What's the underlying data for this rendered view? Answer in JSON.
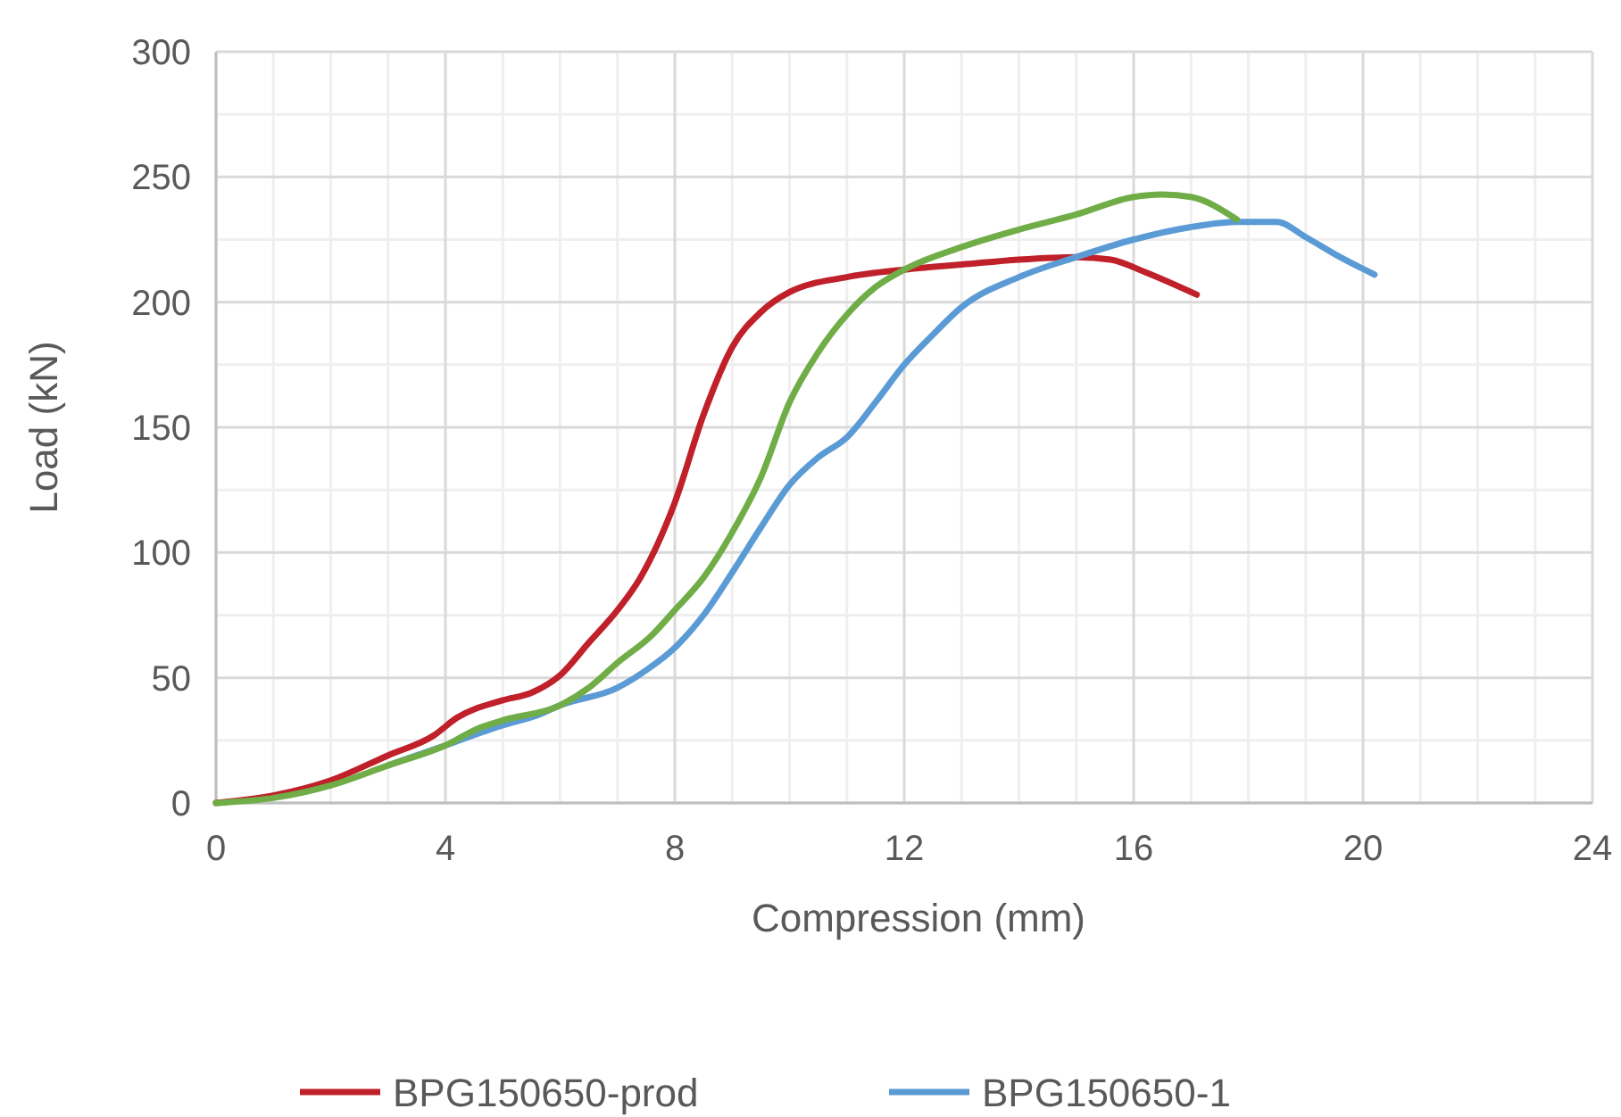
{
  "chart_data": {
    "type": "line",
    "xlabel": "Compression (mm)",
    "ylabel": "Load (kN)",
    "xlim": [
      0,
      24
    ],
    "xticks": [
      0,
      4,
      8,
      12,
      16,
      20,
      24
    ],
    "ylim": [
      0,
      300
    ],
    "yticks": [
      0,
      50,
      100,
      150,
      200,
      250,
      300
    ],
    "grid": true,
    "legend": "bottom",
    "marker": "none",
    "line_style": "solid",
    "series": [
      {
        "name": "BPG150650-prod",
        "color": "#c0202a",
        "x": [
          0,
          1,
          2,
          3,
          3.8,
          4.2,
          5,
          5.5,
          6,
          6.5,
          7,
          7.4,
          8,
          8.5,
          9,
          9.5,
          10,
          11,
          12,
          13,
          14,
          15,
          15.6,
          16.2,
          17.1
        ],
        "values": [
          0,
          3,
          9,
          19,
          27,
          34,
          41,
          44,
          51,
          64,
          77,
          90,
          120,
          155,
          182,
          196,
          204,
          210,
          213,
          215,
          217,
          218,
          217,
          212,
          203
        ]
      },
      {
        "name": "BPG150650-1",
        "color": "#5b9bd5",
        "x": [
          3,
          4,
          5,
          5.6,
          6,
          7,
          7.5,
          8,
          8.5,
          9,
          9.5,
          10,
          10.5,
          11,
          11.5,
          12,
          12.5,
          13,
          14,
          15,
          16,
          17,
          17.8,
          18.5,
          19,
          19.6,
          20.2
        ],
        "values": [
          15,
          23,
          31,
          35,
          39,
          46,
          53,
          62,
          75,
          92,
          110,
          127,
          138,
          146,
          160,
          175,
          187,
          198,
          210,
          218,
          225,
          230,
          232,
          232,
          226,
          218,
          211
        ]
      },
      {
        "color": "#70ad47",
        "x": [
          0,
          1,
          2,
          3,
          4,
          4.6,
          5,
          6,
          6.5,
          7,
          7.6,
          8,
          8.5,
          9,
          9.5,
          10,
          10.5,
          11,
          11.5,
          12,
          13,
          14,
          15,
          16,
          16.5,
          17,
          17.8
        ],
        "values": [
          0,
          2,
          7,
          15,
          23,
          30,
          33,
          39,
          46,
          56,
          67,
          77,
          90,
          108,
          130,
          160,
          180,
          195,
          206,
          213,
          222,
          229,
          235,
          242,
          243,
          242,
          233
        ]
      }
    ]
  }
}
